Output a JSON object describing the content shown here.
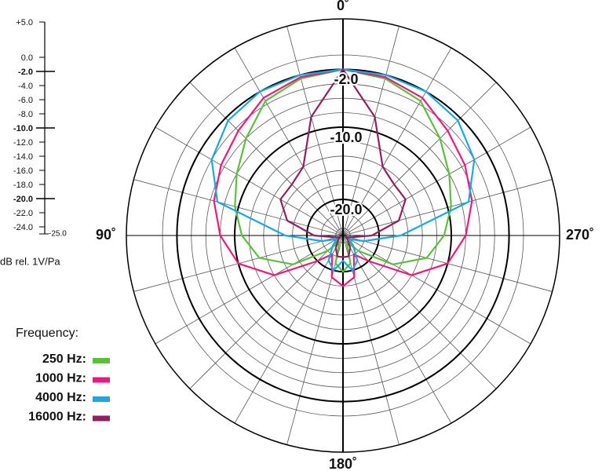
{
  "chart_data": {
    "type": "polar",
    "r_label": "dB rel. 1V/Pa",
    "rlim": [
      -25,
      5
    ],
    "rticks": [
      {
        "value": 5,
        "label": "+5.0"
      },
      {
        "value": 0,
        "label": "0.0"
      },
      {
        "value": -2,
        "label": "-2.0",
        "major": true
      },
      {
        "value": -4,
        "label": "-4.0"
      },
      {
        "value": -6,
        "label": "-6.0"
      },
      {
        "value": -8,
        "label": "-8.0"
      },
      {
        "value": -10,
        "label": "-10.0",
        "major": true
      },
      {
        "value": -12,
        "label": "-12.0"
      },
      {
        "value": -14,
        "label": "-14.0"
      },
      {
        "value": -16,
        "label": "-16.0"
      },
      {
        "value": -18,
        "label": "-18.0"
      },
      {
        "value": -20,
        "label": "-20.0",
        "major": true
      },
      {
        "value": -22,
        "label": "-22.0"
      },
      {
        "value": -24,
        "label": "-24.0"
      },
      {
        "value": -25,
        "label": "-25.0"
      }
    ],
    "thetaticks": [
      {
        "value": 0,
        "label": "0˚"
      },
      {
        "value": 90,
        "label": "90˚"
      },
      {
        "value": 180,
        "label": "180˚"
      },
      {
        "value": 270,
        "label": "270˚"
      }
    ],
    "theta": [
      0,
      15,
      30,
      45,
      60,
      75,
      90,
      105,
      120,
      135,
      150,
      165,
      180,
      195,
      210,
      225,
      240,
      255,
      270,
      285,
      300,
      315,
      330,
      345
    ],
    "legend_title": "Frequency:",
    "series": [
      {
        "name": "250 Hz:",
        "color": "#5cbf3c",
        "values": [
          -2,
          -2.5,
          -3.5,
          -6,
          -8,
          -9.5,
          -11,
          -13,
          -17,
          -22,
          -24,
          -21,
          -20,
          -21,
          -24,
          -22,
          -17,
          -13,
          -11,
          -9.5,
          -8,
          -6,
          -3.5,
          -2.5
        ]
      },
      {
        "name": "1000 Hz:",
        "color": "#ea1a7f",
        "values": [
          -2,
          -2.3,
          -3,
          -4.5,
          -5.5,
          -6.5,
          -8,
          -10,
          -14,
          -20,
          -22,
          -19,
          -18,
          -19,
          -22,
          -20,
          -14,
          -10,
          -8,
          -6.5,
          -5.5,
          -4.5,
          -3,
          -2.3
        ]
      },
      {
        "name": "4000 Hz:",
        "color": "#1ba8e0",
        "values": [
          -2,
          -2,
          -2,
          -2.5,
          -4,
          -7,
          -17,
          -22,
          -24,
          -23,
          -21,
          -20,
          -21.5,
          -20,
          -21,
          -23,
          -24,
          -22,
          -17,
          -7,
          -4,
          -2.5,
          -2,
          -2
        ]
      },
      {
        "name": "16000 Hz:",
        "color": "#8e2160",
        "values": [
          -2,
          -8,
          -14,
          -15,
          -15,
          -17,
          -21,
          -24,
          -24.5,
          -24,
          -23,
          -22,
          -22,
          -22,
          -23,
          -24,
          -24.5,
          -24,
          -21,
          -17,
          -15,
          -15,
          -14,
          -8
        ]
      }
    ]
  }
}
